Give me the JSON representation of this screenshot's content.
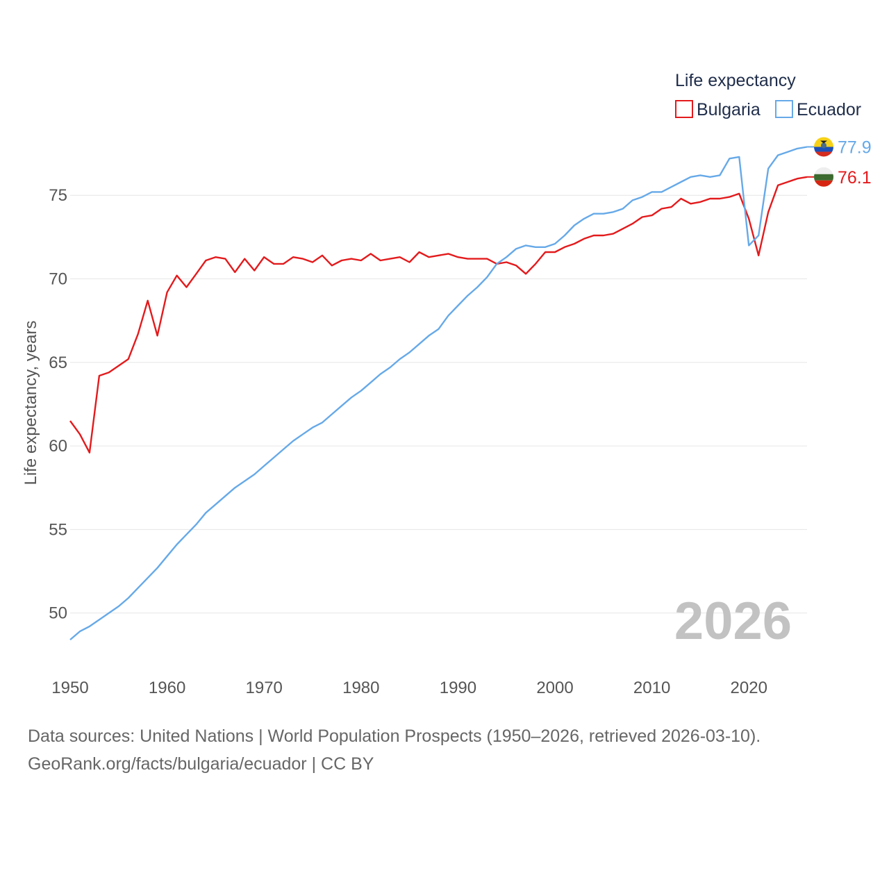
{
  "chart_data": {
    "type": "line",
    "title": "",
    "xlabel": "",
    "ylabel": "Life expectancy, years",
    "xlim": [
      1950,
      2026
    ],
    "ylim": [
      47.2,
      79.0
    ],
    "x_ticks": [
      1950,
      1960,
      1970,
      1980,
      1990,
      2000,
      2010,
      2020
    ],
    "y_ticks": [
      50,
      55,
      60,
      65,
      70,
      75
    ],
    "grid": true,
    "legend": {
      "title": "Life expectancy",
      "position": "top-right"
    },
    "current_year_label": "2026",
    "x": [
      1950,
      1951,
      1952,
      1953,
      1954,
      1955,
      1956,
      1957,
      1958,
      1959,
      1960,
      1961,
      1962,
      1963,
      1964,
      1965,
      1966,
      1967,
      1968,
      1969,
      1970,
      1971,
      1972,
      1973,
      1974,
      1975,
      1976,
      1977,
      1978,
      1979,
      1980,
      1981,
      1982,
      1983,
      1984,
      1985,
      1986,
      1987,
      1988,
      1989,
      1990,
      1991,
      1992,
      1993,
      1994,
      1995,
      1996,
      1997,
      1998,
      1999,
      2000,
      2001,
      2002,
      2003,
      2004,
      2005,
      2006,
      2007,
      2008,
      2009,
      2010,
      2011,
      2012,
      2013,
      2014,
      2015,
      2016,
      2017,
      2018,
      2019,
      2020,
      2021,
      2022,
      2023,
      2024,
      2025,
      2026
    ],
    "series": [
      {
        "name": "Bulgaria",
        "color": "#e31a1c",
        "flag": "bulgaria-flag-icon",
        "end_label": "76.1",
        "values": [
          61.5,
          60.7,
          59.6,
          64.2,
          64.4,
          64.8,
          65.2,
          66.7,
          68.7,
          66.6,
          69.2,
          70.2,
          69.5,
          70.3,
          71.1,
          71.3,
          71.2,
          70.4,
          71.2,
          70.5,
          71.3,
          70.9,
          70.9,
          71.3,
          71.2,
          71.0,
          71.4,
          70.8,
          71.1,
          71.2,
          71.1,
          71.5,
          71.1,
          71.2,
          71.3,
          71.0,
          71.6,
          71.3,
          71.4,
          71.5,
          71.3,
          71.2,
          71.2,
          71.2,
          70.9,
          71.0,
          70.8,
          70.3,
          70.9,
          71.6,
          71.6,
          71.9,
          72.1,
          72.4,
          72.6,
          72.6,
          72.7,
          73.0,
          73.3,
          73.7,
          73.8,
          74.2,
          74.3,
          74.8,
          74.5,
          74.6,
          74.8,
          74.8,
          74.9,
          75.1,
          73.6,
          71.4,
          74.0,
          75.6,
          75.8,
          76.0,
          76.1
        ]
      },
      {
        "name": "Ecuador",
        "color": "#66a9e8",
        "flag": "ecuador-flag-icon",
        "end_label": "77.9",
        "values": [
          48.4,
          48.9,
          49.2,
          49.6,
          50.0,
          50.4,
          50.9,
          51.5,
          52.1,
          52.7,
          53.4,
          54.1,
          54.7,
          55.3,
          56.0,
          56.5,
          57.0,
          57.5,
          57.9,
          58.3,
          58.8,
          59.3,
          59.8,
          60.3,
          60.7,
          61.1,
          61.4,
          61.9,
          62.4,
          62.9,
          63.3,
          63.8,
          64.3,
          64.7,
          65.2,
          65.6,
          66.1,
          66.6,
          67.0,
          67.8,
          68.4,
          69.0,
          69.5,
          70.1,
          70.9,
          71.3,
          71.8,
          72.0,
          71.9,
          71.9,
          72.1,
          72.6,
          73.2,
          73.6,
          73.9,
          73.9,
          74.0,
          74.2,
          74.7,
          74.9,
          75.2,
          75.2,
          75.5,
          75.8,
          76.1,
          76.2,
          76.1,
          76.2,
          77.2,
          77.3,
          72.0,
          72.6,
          76.6,
          77.4,
          77.6,
          77.8,
          77.9
        ]
      }
    ]
  },
  "footer": {
    "line1": "Data sources: United Nations | World Population Prospects (1950–2026, retrieved 2026-03-10).",
    "line2": "GeoRank.org/facts/bulgaria/ecuador | CC BY"
  }
}
